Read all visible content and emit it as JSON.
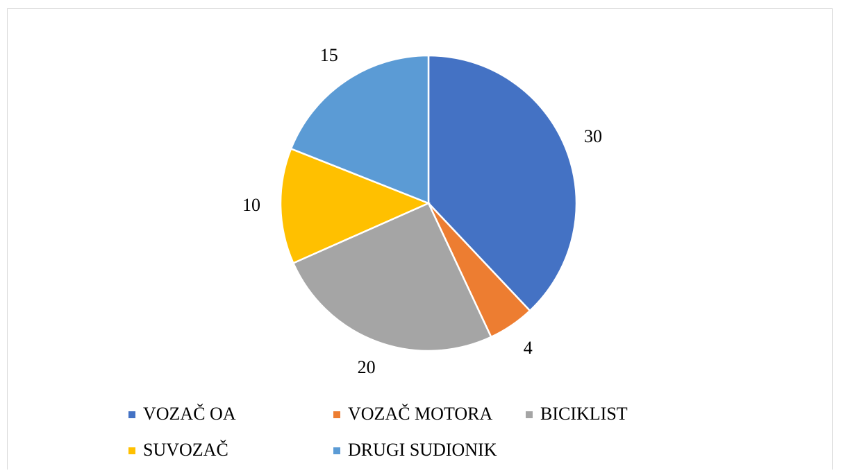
{
  "chart_data": {
    "type": "pie",
    "categories": [
      "VOZAČ OA",
      "VOZAČ MOTORA",
      "BICIKLIST",
      "SUVOZAČ",
      "DRUGI SUDIONIK"
    ],
    "values": [
      30,
      4,
      20,
      10,
      15
    ],
    "colors": [
      "#4472c4",
      "#ed7d31",
      "#a5a5a5",
      "#ffc000",
      "#5b9bd5"
    ],
    "legend": "bottom"
  }
}
